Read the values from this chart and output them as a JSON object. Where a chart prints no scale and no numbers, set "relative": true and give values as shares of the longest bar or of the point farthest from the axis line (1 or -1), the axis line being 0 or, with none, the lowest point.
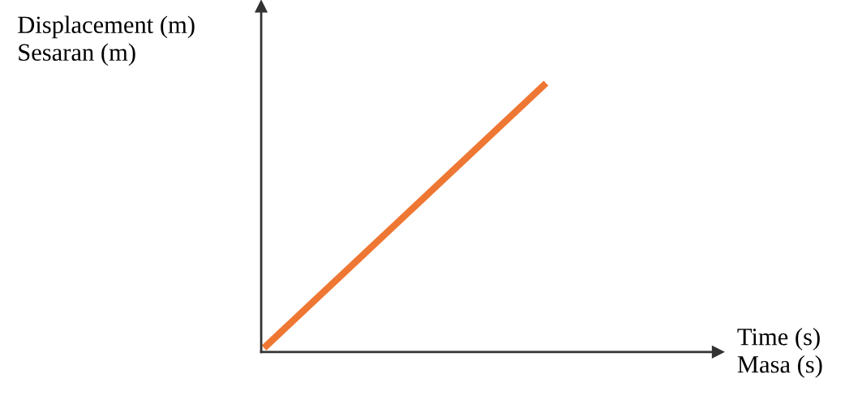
{
  "chart_data": {
    "type": "line",
    "relative": true,
    "xlabel": "Time (s)\nMasa (s)",
    "ylabel": "Displacement (m)\nSesaran (m)",
    "categories": [
      null,
      null
    ],
    "series": [
      {
        "color": "#ee7733",
        "values": [
          0,
          1
        ]
      }
    ]
  }
}
